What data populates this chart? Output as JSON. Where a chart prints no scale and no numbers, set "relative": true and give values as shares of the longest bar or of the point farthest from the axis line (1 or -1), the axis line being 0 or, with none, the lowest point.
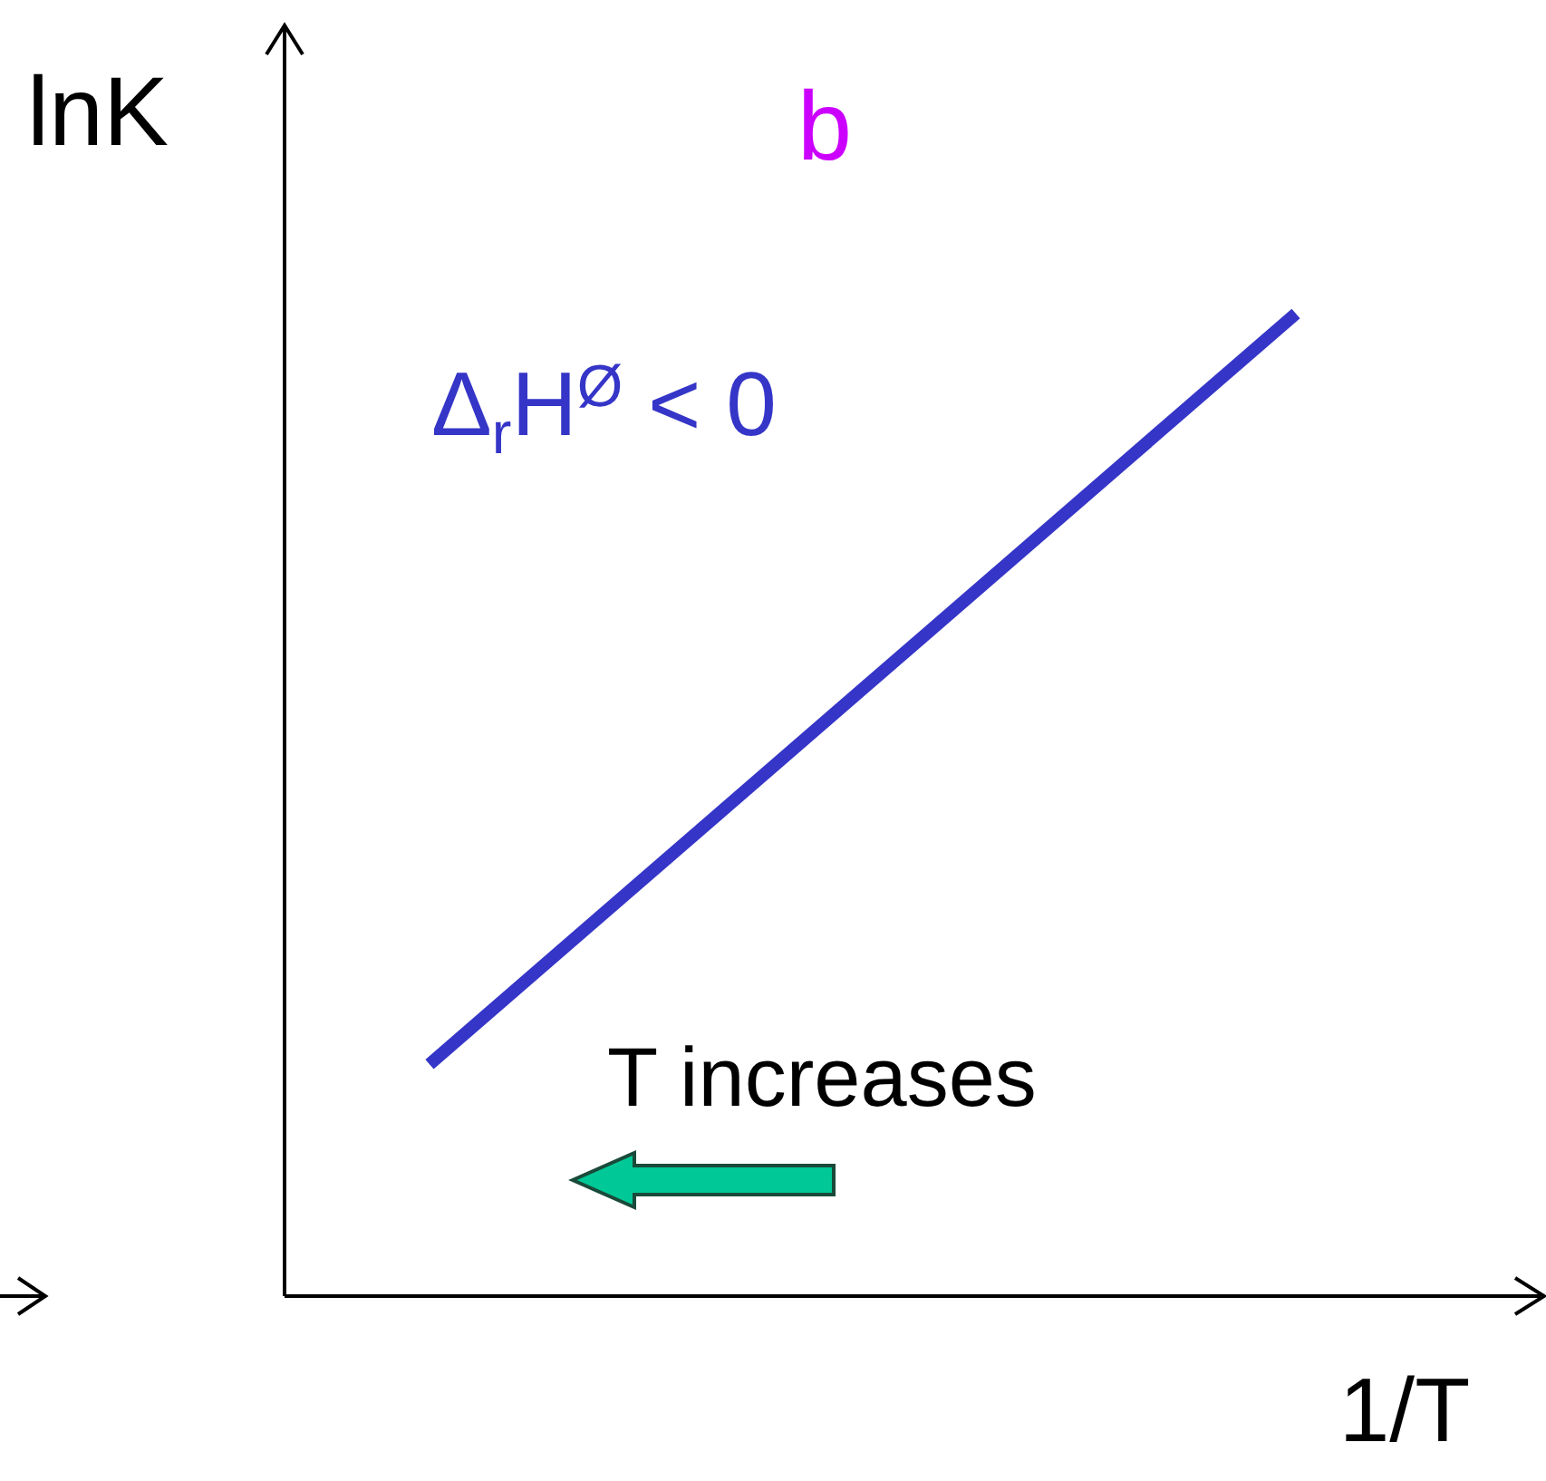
{
  "chart_data": {
    "type": "line",
    "relative": true,
    "title": "b",
    "xlabel": "1/T",
    "ylabel": "lnK",
    "categories": [
      null,
      null
    ],
    "series": [
      {
        "color": "#3535c8",
        "values": [
          0.236,
          1
        ]
      }
    ],
    "annotations": [
      "Δ$_{r}$H$^{Ø}$ < 0",
      "T increases"
    ],
    "line_style": "solid"
  }
}
